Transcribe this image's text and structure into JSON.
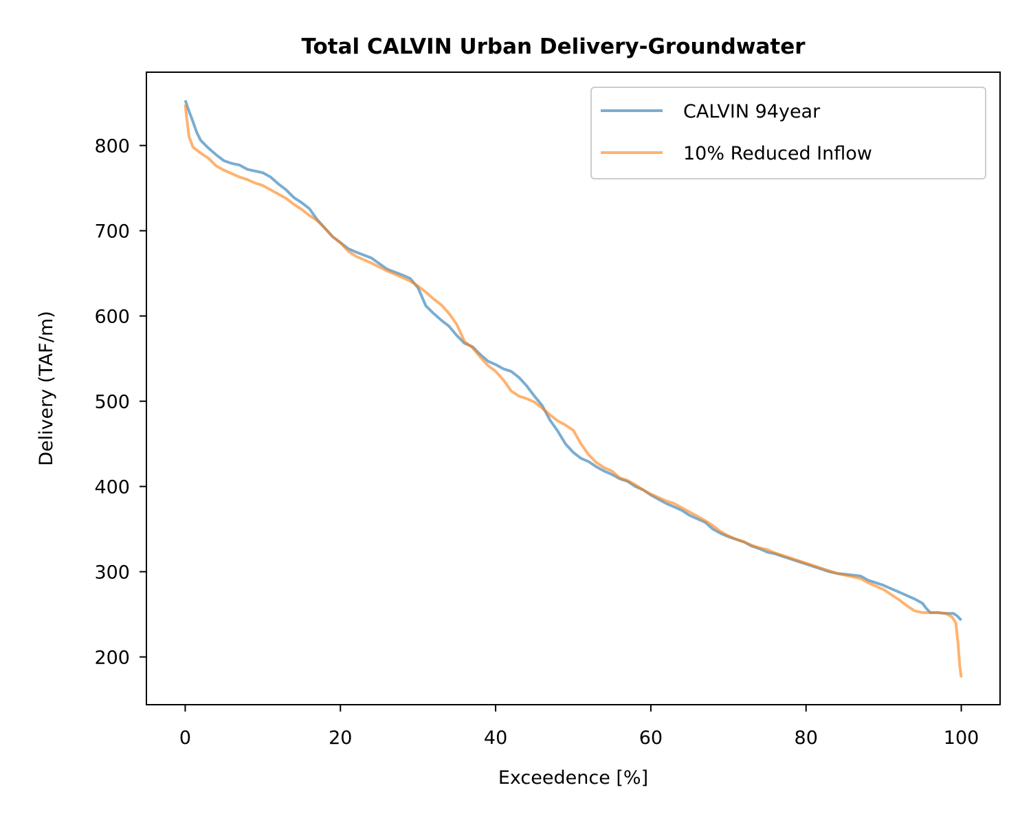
{
  "chart_data": {
    "type": "line",
    "title": "Total CALVIN Urban Delivery-Groundwater",
    "xlabel": "Exceedence [%]",
    "ylabel": "Delivery (TAF/m)",
    "xlim": [
      -5,
      105
    ],
    "ylim": [
      144,
      886
    ],
    "xticks": [
      0,
      20,
      40,
      60,
      80,
      100
    ],
    "yticks": [
      200,
      300,
      400,
      500,
      600,
      700,
      800
    ],
    "xtick_labels": [
      "0",
      "20",
      "40",
      "60",
      "80",
      "100"
    ],
    "ytick_labels": [
      "200",
      "300",
      "400",
      "500",
      "600",
      "700",
      "800"
    ],
    "grid": false,
    "legend": "top-right",
    "series": [
      {
        "name": "CALVIN 94year",
        "color": "#1f77b4",
        "opacity": 0.6,
        "x": [
          0,
          0.5,
          1,
          1.5,
          2,
          3,
          4,
          5,
          6,
          7,
          8,
          10,
          11,
          12,
          13,
          14,
          15,
          16,
          17,
          18,
          19,
          20,
          21,
          22,
          24,
          26,
          28,
          29,
          30,
          31,
          32,
          33,
          34,
          35,
          36,
          37,
          38,
          39,
          40,
          41,
          42,
          43,
          44,
          45,
          46,
          47,
          48,
          49,
          50,
          51,
          52,
          53,
          54,
          55,
          56,
          57,
          58,
          59,
          60,
          61,
          62,
          63,
          64,
          65,
          66,
          67,
          68,
          69,
          70,
          71,
          72,
          73,
          74,
          75,
          76,
          77,
          78,
          79,
          80,
          81,
          82,
          83,
          84,
          85,
          86,
          87,
          88,
          89,
          90,
          91,
          92,
          93,
          94,
          95,
          95.5,
          96,
          97,
          98,
          99,
          99.5,
          100
        ],
        "y": [
          853,
          840,
          828,
          815,
          806,
          797,
          789,
          782,
          779,
          777,
          772,
          768,
          763,
          755,
          748,
          739,
          733,
          726,
          713,
          703,
          693,
          686,
          679,
          675,
          668,
          655,
          648,
          644,
          633,
          612,
          603,
          595,
          588,
          577,
          568,
          564,
          555,
          547,
          543,
          538,
          535,
          528,
          518,
          506,
          495,
          478,
          465,
          450,
          440,
          433,
          429,
          423,
          418,
          414,
          409,
          406,
          400,
          396,
          390,
          385,
          380,
          376,
          372,
          366,
          362,
          358,
          350,
          345,
          341,
          338,
          335,
          330,
          327,
          323,
          321,
          318,
          315,
          312,
          309,
          306,
          303,
          300,
          298,
          297,
          296,
          295,
          290,
          287,
          284,
          280,
          276,
          272,
          268,
          263,
          257,
          252,
          252,
          251,
          251,
          248,
          243
        ]
      },
      {
        "name": "10% Reduced Inflow",
        "color": "#ff7f0e",
        "opacity": 0.6,
        "x": [
          0,
          0.2,
          0.5,
          0.8,
          1,
          2,
          3,
          4,
          5,
          6,
          7,
          8,
          9,
          10,
          11,
          12,
          13,
          14,
          15,
          16,
          17,
          18,
          19,
          20,
          21,
          22,
          24,
          26,
          28,
          29,
          30,
          31,
          32,
          33,
          34,
          35,
          36,
          37,
          38,
          39,
          40,
          41,
          42,
          43,
          44,
          45,
          46,
          47,
          48,
          49,
          50,
          51,
          52,
          53,
          54,
          55,
          56,
          57,
          58,
          59,
          60,
          61,
          62,
          63,
          64,
          65,
          66,
          67,
          68,
          69,
          70,
          71,
          72,
          73,
          74,
          75,
          76,
          77,
          78,
          79,
          80,
          81,
          82,
          83,
          84,
          85,
          86,
          87,
          88,
          89,
          90,
          91,
          92,
          93,
          94,
          95,
          96,
          97,
          98,
          98.8,
          99.3,
          99.6,
          99.8,
          100
        ],
        "y": [
          848,
          832,
          810,
          803,
          798,
          791,
          785,
          776,
          771,
          767,
          763,
          760,
          756,
          753,
          748,
          743,
          738,
          731,
          725,
          718,
          712,
          703,
          693,
          686,
          676,
          670,
          662,
          653,
          645,
          641,
          635,
          628,
          620,
          613,
          603,
          590,
          570,
          563,
          552,
          542,
          535,
          525,
          512,
          506,
          503,
          499,
          492,
          484,
          477,
          472,
          466,
          450,
          437,
          428,
          422,
          418,
          410,
          407,
          402,
          396,
          391,
          387,
          383,
          380,
          375,
          370,
          365,
          360,
          354,
          347,
          342,
          338,
          335,
          331,
          328,
          326,
          322,
          319,
          316,
          313,
          310,
          307,
          304,
          301,
          298,
          296,
          294,
          292,
          287,
          283,
          279,
          273,
          267,
          260,
          254,
          252,
          252,
          252,
          251,
          247,
          240,
          215,
          190,
          176
        ]
      }
    ]
  }
}
